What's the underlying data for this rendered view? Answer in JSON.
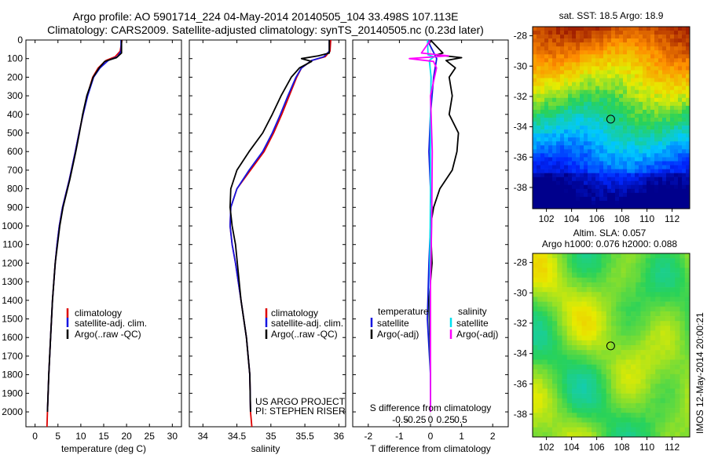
{
  "header": {
    "line1": "Argo profile: AO 5901714_224 04-May-2014 20140505_104 33.498S 107.113E",
    "line2": "Climatology: CARS2009. Satellite-adjusted climatology: synTS_20140505.nc (0.23d later)"
  },
  "colors": {
    "climatology": "#dd0000",
    "satellite": "#1515e0",
    "argo": "#000000",
    "salinity_satellite": "#00e0f0",
    "salinity_argo": "#ff00ff"
  },
  "legends": {
    "profile": [
      "climatology",
      "satellite-adj. clim.",
      "Argo(..raw -QC)"
    ],
    "diff_temp_title": "temperature",
    "diff_sal_title": "salinity",
    "diff_items": [
      "satellite",
      "Argo(-adj)"
    ]
  },
  "notes": {
    "project": "US ARGO PROJECT",
    "pi": "PI: STEPHEN RISER"
  },
  "maps": {
    "sst_title": "sat. SST: 18.5  Argo: 18.9",
    "sla_title1": "Altim. SLA: 0.057",
    "sla_title2": "Argo h1000: 0.076 h2000: 0.088",
    "stamp": "IMOS 12-May-2014 20:00:21",
    "lat_ticks": [
      "-28",
      "-30",
      "-32",
      "-34",
      "-36",
      "-38"
    ],
    "lon_ticks": [
      "102",
      "104",
      "106",
      "108",
      "110",
      "112"
    ],
    "float_position": {
      "lon": 107.113,
      "lat": -33.498
    }
  },
  "chart_data": [
    {
      "type": "line",
      "name": "temperature-profile",
      "xlabel": "temperature (deg C)",
      "ylabel": "",
      "xlim": [
        -2,
        32
      ],
      "ylim": [
        2080,
        0
      ],
      "xticks": [
        0,
        5,
        10,
        15,
        20,
        25,
        30
      ],
      "yticks": [
        0,
        100,
        200,
        300,
        400,
        500,
        600,
        700,
        800,
        900,
        1000,
        1100,
        1200,
        1300,
        1400,
        1500,
        1600,
        1700,
        1800,
        1900,
        2000
      ],
      "series": [
        {
          "name": "climatology",
          "x": [
            19.0,
            18.6,
            17.5,
            15.5,
            13.8,
            12.6,
            11.4,
            10.5,
            9.6,
            8.8,
            7.5,
            6.0,
            5.3,
            4.8,
            4.4,
            3.8,
            3.4,
            3.0,
            2.7,
            2.6
          ],
          "y": [
            0,
            60,
            90,
            110,
            150,
            200,
            300,
            400,
            500,
            600,
            750,
            900,
            1000,
            1100,
            1200,
            1400,
            1600,
            1800,
            2000,
            2080
          ]
        },
        {
          "name": "satellite-adj. clim.",
          "x": [
            18.8,
            18.8,
            18.0,
            16.0,
            14.2,
            12.8,
            11.5,
            10.5,
            9.6,
            8.8,
            7.5,
            6.0,
            5.3,
            4.8,
            4.4,
            3.8,
            3.4,
            3.0,
            2.7
          ],
          "y": [
            0,
            60,
            90,
            110,
            150,
            200,
            300,
            400,
            500,
            600,
            750,
            900,
            1000,
            1100,
            1200,
            1400,
            1600,
            1800,
            2000
          ]
        },
        {
          "name": "Argo(..raw -QC)",
          "x": [
            18.9,
            18.9,
            17.8,
            15.2,
            14.0,
            12.7,
            11.3,
            10.4,
            9.7,
            8.9,
            7.6,
            6.1,
            5.4,
            4.9,
            4.4,
            3.8,
            3.4,
            3.0,
            2.7
          ],
          "y": [
            0,
            70,
            95,
            115,
            150,
            200,
            300,
            400,
            500,
            600,
            750,
            900,
            1000,
            1100,
            1200,
            1400,
            1600,
            1800,
            2000
          ]
        }
      ]
    },
    {
      "type": "line",
      "name": "salinity-profile",
      "xlabel": "salinity",
      "ylabel": "",
      "xlim": [
        33.8,
        36.1
      ],
      "ylim": [
        2080,
        0
      ],
      "xticks": [
        34,
        34.5,
        35,
        35.5,
        36
      ],
      "xtick_labels": [
        "34",
        "34.5",
        "35",
        "35.5",
        "36"
      ],
      "series": [
        {
          "name": "climatology",
          "x": [
            35.88,
            35.87,
            35.8,
            35.6,
            35.45,
            35.38,
            35.27,
            35.16,
            35.04,
            34.9,
            34.7,
            34.5,
            34.41,
            34.4,
            34.43,
            34.48,
            34.56,
            34.64,
            34.69,
            34.7,
            34.72
          ],
          "y": [
            0,
            60,
            90,
            110,
            150,
            200,
            300,
            400,
            500,
            600,
            700,
            800,
            900,
            1000,
            1100,
            1200,
            1400,
            1600,
            1800,
            2000,
            2080
          ]
        },
        {
          "name": "satellite-adj. clim.",
          "x": [
            35.86,
            35.86,
            35.78,
            35.6,
            35.45,
            35.37,
            35.25,
            35.14,
            35.02,
            34.88,
            34.68,
            34.5,
            34.41,
            34.4,
            34.43,
            34.48,
            34.56,
            34.64,
            34.69,
            34.7
          ],
          "y": [
            0,
            60,
            90,
            110,
            150,
            200,
            300,
            400,
            500,
            600,
            700,
            800,
            900,
            1000,
            1100,
            1200,
            1400,
            1600,
            1800,
            2000
          ]
        },
        {
          "name": "Argo(..raw -QC)",
          "x": [
            35.86,
            35.86,
            35.7,
            35.45,
            35.6,
            35.42,
            35.3,
            35.15,
            35.02,
            34.88,
            34.68,
            34.5,
            34.41,
            34.4,
            34.43,
            34.48,
            34.56,
            34.64,
            34.69,
            34.7
          ],
          "y": [
            0,
            70,
            85,
            100,
            115,
            150,
            200,
            300,
            400,
            500,
            600,
            700,
            800,
            900,
            1000,
            1100,
            1400,
            1600,
            1800,
            2000
          ]
        }
      ]
    },
    {
      "type": "line",
      "name": "difference-profile",
      "xlabel": "T difference from climatology",
      "xlabel_top": "S difference from climatology",
      "xlim": [
        -2.5,
        2.5
      ],
      "ylim": [
        2080,
        0
      ],
      "xticks": [
        -2,
        -1,
        0,
        1,
        2
      ],
      "xtick_labels": [
        "-2",
        "-1",
        "0",
        "1",
        "2"
      ],
      "sticks": [
        -0.5,
        -0.25,
        0,
        0.25,
        0.5
      ],
      "stick_labels": [
        "-0.5",
        "-0.25",
        "0",
        "0.25",
        "0.5"
      ],
      "series": [
        {
          "name": "temperature satellite",
          "x": [
            -0.1,
            0.2,
            0.1,
            0.0,
            -0.05,
            0.0,
            0.05,
            0.0,
            -0.05,
            -0.1,
            0.0,
            0.0
          ],
          "y": [
            0,
            100,
            200,
            400,
            600,
            800,
            900,
            1000,
            1200,
            1500,
            1800,
            2000
          ]
        },
        {
          "name": "temperature Argo(-adj)",
          "x": [
            0.0,
            0.4,
            0.2,
            1.0,
            0.5,
            0.8,
            0.6,
            0.7,
            0.6,
            0.9,
            0.85,
            0.7,
            0.3,
            0.1,
            0.0,
            0.05,
            -0.05,
            0.0,
            0.0
          ],
          "y": [
            0,
            70,
            80,
            95,
            110,
            150,
            200,
            300,
            400,
            500,
            600,
            700,
            800,
            900,
            1000,
            1200,
            1400,
            1800,
            2000
          ]
        },
        {
          "name": "salinity satellite",
          "x": [
            -0.05,
            -0.04,
            0.06,
            -0.02,
            0.01,
            0.0,
            0.0,
            -0.01,
            0.0
          ],
          "y": [
            0,
            80,
            90,
            110,
            200,
            400,
            800,
            1200,
            2000
          ]
        },
        {
          "name": "salinity Argo(-adj)",
          "x": [
            0.0,
            -0.15,
            0.3,
            -0.35,
            0.05,
            0.1,
            0.0,
            0.03,
            0.02,
            0.0,
            0.0
          ],
          "y": [
            0,
            70,
            85,
            100,
            115,
            150,
            300,
            600,
            1000,
            1300,
            2000
          ]
        }
      ]
    }
  ]
}
